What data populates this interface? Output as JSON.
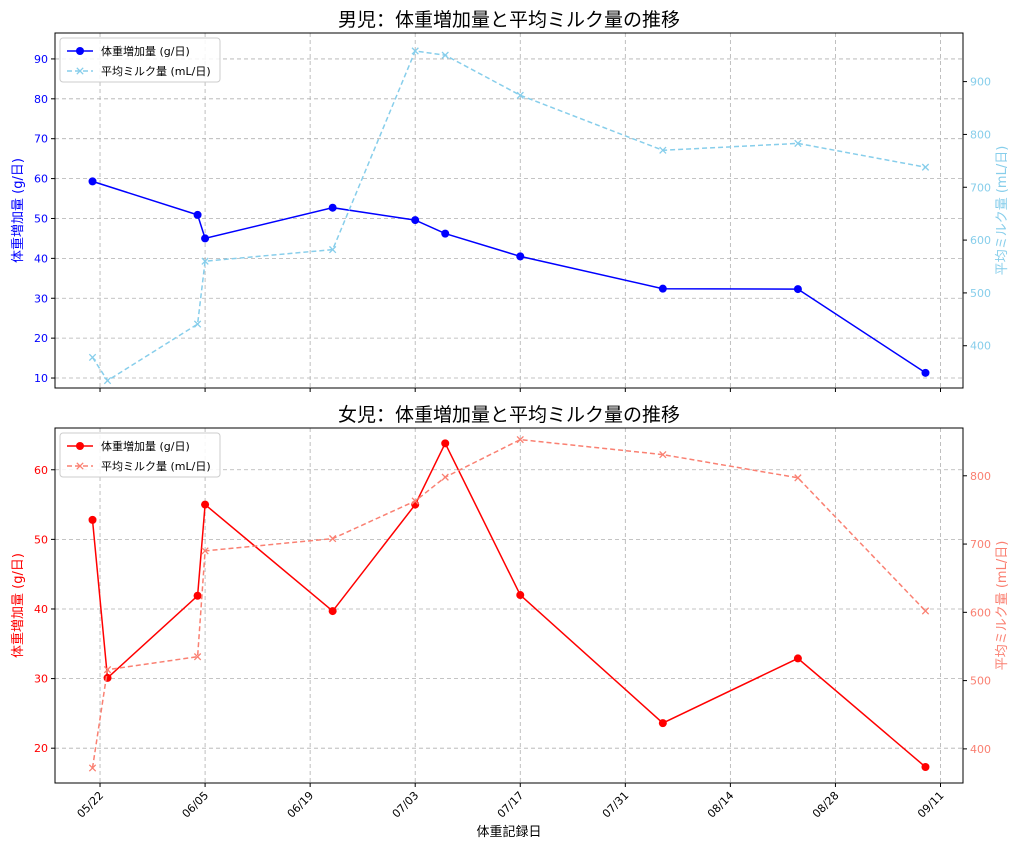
{
  "chart_data": [
    {
      "type": "line",
      "title": "男児：体重増加量と平均ミルク量の推移",
      "xlabel": "",
      "ylabel": "体重増加量 (g/日)",
      "y2label": "平均ミルク量 (mL/日)",
      "ylim": [
        7.5,
        96.5
      ],
      "y2lim": [
        320,
        992
      ],
      "yticks": [
        10,
        20,
        30,
        40,
        50,
        60,
        70,
        80,
        90
      ],
      "y2ticks": [
        400,
        500,
        600,
        700,
        800,
        900
      ],
      "grid": true,
      "legend": "top-left",
      "series": [
        {
          "name": "体重増加量 (g/日)",
          "axis": "left",
          "color": "#0000ff",
          "marker": "circle",
          "style": "solid",
          "x": [
            "2025-05-21",
            "2025-06-04",
            "2025-06-05",
            "2025-06-22",
            "2025-07-03",
            "2025-07-07",
            "2025-07-17",
            "2025-08-05",
            "2025-08-23",
            "2025-09-09"
          ],
          "values": [
            59.3,
            50.9,
            45.0,
            52.7,
            49.6,
            46.2,
            40.5,
            32.4,
            32.3,
            11.3
          ]
        },
        {
          "name": "平均ミルク量 (mL/日)",
          "axis": "right",
          "color": "#87ceeb",
          "marker": "x",
          "style": "dashed",
          "x": [
            "2025-05-21",
            "2025-05-23",
            "2025-06-04",
            "2025-06-05",
            "2025-06-22",
            "2025-07-03",
            "2025-07-07",
            "2025-07-17",
            "2025-08-05",
            "2025-08-23",
            "2025-09-09"
          ],
          "values": [
            378,
            334,
            441,
            560,
            582,
            958,
            950,
            874,
            770,
            783,
            738
          ]
        }
      ]
    },
    {
      "type": "line",
      "title": "女児：体重増加量と平均ミルク量の推移",
      "xlabel": "体重記録日",
      "ylabel": "体重増加量 (g/日)",
      "y2label": "平均ミルク量 (mL/日)",
      "ylim": [
        15,
        66
      ],
      "y2lim": [
        350,
        870
      ],
      "yticks": [
        20,
        30,
        40,
        50,
        60
      ],
      "y2ticks": [
        400,
        500,
        600,
        700,
        800
      ],
      "xticks": [
        "05/22",
        "06/05",
        "06/19",
        "07/03",
        "07/17",
        "07/31",
        "08/14",
        "08/28",
        "09/11"
      ],
      "xtick_dates": [
        "2025-05-22",
        "2025-06-05",
        "2025-06-19",
        "2025-07-03",
        "2025-07-17",
        "2025-07-31",
        "2025-08-14",
        "2025-08-28",
        "2025-09-11"
      ],
      "xlim": [
        "2025-05-16",
        "2025-09-14"
      ],
      "grid": true,
      "legend": "top-left",
      "series": [
        {
          "name": "体重増加量 (g/日)",
          "axis": "left",
          "color": "#ff0000",
          "marker": "circle",
          "style": "solid",
          "x": [
            "2025-05-21",
            "2025-05-23",
            "2025-06-04",
            "2025-06-05",
            "2025-06-22",
            "2025-07-03",
            "2025-07-07",
            "2025-07-17",
            "2025-08-05",
            "2025-08-23",
            "2025-09-09"
          ],
          "values": [
            52.8,
            30.1,
            41.9,
            55.0,
            39.7,
            55.0,
            63.8,
            42.0,
            23.6,
            32.9,
            17.3
          ]
        },
        {
          "name": "平均ミルク量 (mL/日)",
          "axis": "right",
          "color": "#fa8072",
          "marker": "x",
          "style": "dashed",
          "x": [
            "2025-05-21",
            "2025-05-23",
            "2025-06-04",
            "2025-06-05",
            "2025-06-22",
            "2025-07-03",
            "2025-07-07",
            "2025-07-17",
            "2025-08-05",
            "2025-08-23",
            "2025-09-09"
          ],
          "values": [
            372,
            516,
            535,
            690,
            708,
            763,
            798,
            853,
            831,
            797,
            602
          ]
        }
      ]
    }
  ]
}
